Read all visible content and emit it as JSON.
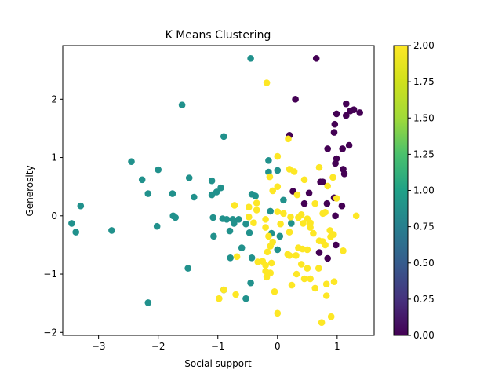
{
  "chart_data": {
    "type": "scatter",
    "title": "K Means Clustering",
    "xlabel": "Social support",
    "ylabel": "Generosity",
    "xlim": [
      -3.6,
      1.62
    ],
    "ylim": [
      -2.05,
      2.92
    ],
    "xticks": [
      -3,
      -2,
      -1,
      0,
      1
    ],
    "yticks": [
      -2,
      -1,
      0,
      1,
      2
    ],
    "grid": false,
    "colorbar": {
      "label": "",
      "range": [
        0,
        2
      ],
      "ticks": [
        "0.00",
        "0.25",
        "0.50",
        "0.75",
        "1.00",
        "1.25",
        "1.50",
        "1.75",
        "2.00"
      ],
      "colormap": "viridis"
    },
    "cluster_colors": {
      "0": "#440154",
      "1": "#21918c",
      "2": "#fde725"
    },
    "points": [
      {
        "x": 0.65,
        "y": 2.7,
        "c": 0
      },
      {
        "x": 0.3,
        "y": 2.0,
        "c": 0
      },
      {
        "x": 0.2,
        "y": 1.38,
        "c": 0
      },
      {
        "x": 1.15,
        "y": 1.92,
        "c": 0
      },
      {
        "x": 1.22,
        "y": 1.8,
        "c": 0
      },
      {
        "x": 1.28,
        "y": 1.82,
        "c": 0
      },
      {
        "x": 1.38,
        "y": 1.77,
        "c": 0
      },
      {
        "x": 1.15,
        "y": 1.72,
        "c": 0
      },
      {
        "x": 0.99,
        "y": 1.75,
        "c": 0
      },
      {
        "x": 0.96,
        "y": 1.57,
        "c": 0
      },
      {
        "x": 0.95,
        "y": 1.43,
        "c": 0
      },
      {
        "x": 1.2,
        "y": 1.21,
        "c": 0
      },
      {
        "x": 0.84,
        "y": 1.15,
        "c": 0
      },
      {
        "x": 1.09,
        "y": 1.15,
        "c": 0
      },
      {
        "x": 0.99,
        "y": 0.98,
        "c": 0
      },
      {
        "x": 0.97,
        "y": 0.9,
        "c": 0
      },
      {
        "x": 1.1,
        "y": 0.8,
        "c": 0
      },
      {
        "x": 1.12,
        "y": 0.72,
        "c": 0
      },
      {
        "x": 0.72,
        "y": 0.58,
        "c": 0
      },
      {
        "x": 0.76,
        "y": 0.58,
        "c": 0
      },
      {
        "x": 0.26,
        "y": 0.42,
        "c": 0
      },
      {
        "x": 0.53,
        "y": 0.39,
        "c": 0
      },
      {
        "x": 0.95,
        "y": 0.31,
        "c": 0
      },
      {
        "x": 0.45,
        "y": 0.21,
        "c": 0
      },
      {
        "x": 0.83,
        "y": 0.21,
        "c": 0
      },
      {
        "x": 1.08,
        "y": 0.17,
        "c": 0
      },
      {
        "x": 0.97,
        "y": 0.0,
        "c": 0
      },
      {
        "x": 0.98,
        "y": -0.5,
        "c": 0
      },
      {
        "x": 0.7,
        "y": -0.63,
        "c": 0
      },
      {
        "x": 0.84,
        "y": -0.73,
        "c": 0
      },
      {
        "x": -0.45,
        "y": 2.7,
        "c": 1
      },
      {
        "x": -1.6,
        "y": 1.9,
        "c": 1
      },
      {
        "x": -0.9,
        "y": 1.36,
        "c": 1
      },
      {
        "x": -2.45,
        "y": 0.93,
        "c": 1
      },
      {
        "x": -0.15,
        "y": 0.95,
        "c": 1
      },
      {
        "x": -2.0,
        "y": 0.79,
        "c": 1
      },
      {
        "x": -0.15,
        "y": 0.75,
        "c": 1
      },
      {
        "x": 0.0,
        "y": 0.78,
        "c": 1
      },
      {
        "x": -2.27,
        "y": 0.62,
        "c": 1
      },
      {
        "x": -1.48,
        "y": 0.65,
        "c": 1
      },
      {
        "x": -1.1,
        "y": 0.6,
        "c": 1
      },
      {
        "x": -0.95,
        "y": 0.48,
        "c": 1
      },
      {
        "x": -2.17,
        "y": 0.38,
        "c": 1
      },
      {
        "x": -1.76,
        "y": 0.38,
        "c": 1
      },
      {
        "x": -1.4,
        "y": 0.32,
        "c": 1
      },
      {
        "x": -1.1,
        "y": 0.36,
        "c": 1
      },
      {
        "x": -1.02,
        "y": 0.41,
        "c": 1
      },
      {
        "x": -0.43,
        "y": 0.37,
        "c": 1
      },
      {
        "x": -0.37,
        "y": 0.34,
        "c": 1
      },
      {
        "x": 0.1,
        "y": 0.27,
        "c": 1
      },
      {
        "x": -3.3,
        "y": 0.17,
        "c": 1
      },
      {
        "x": -0.12,
        "y": 0.08,
        "c": 1
      },
      {
        "x": -1.75,
        "y": 0.0,
        "c": 1
      },
      {
        "x": -1.71,
        "y": -0.03,
        "c": 1
      },
      {
        "x": -1.08,
        "y": -0.03,
        "c": 1
      },
      {
        "x": -0.92,
        "y": -0.05,
        "c": 1
      },
      {
        "x": -0.85,
        "y": -0.06,
        "c": 1
      },
      {
        "x": -0.75,
        "y": -0.06,
        "c": 1
      },
      {
        "x": -0.65,
        "y": -0.06,
        "c": 1
      },
      {
        "x": -3.45,
        "y": -0.13,
        "c": 1
      },
      {
        "x": -2.02,
        "y": -0.18,
        "c": 1
      },
      {
        "x": -0.73,
        "y": -0.13,
        "c": 1
      },
      {
        "x": -0.53,
        "y": -0.14,
        "c": 1
      },
      {
        "x": 0.23,
        "y": -0.13,
        "c": 1
      },
      {
        "x": -3.38,
        "y": -0.28,
        "c": 1
      },
      {
        "x": -2.78,
        "y": -0.25,
        "c": 1
      },
      {
        "x": -0.8,
        "y": -0.26,
        "c": 1
      },
      {
        "x": -0.47,
        "y": -0.29,
        "c": 1
      },
      {
        "x": -0.1,
        "y": -0.3,
        "c": 1
      },
      {
        "x": -1.07,
        "y": -0.35,
        "c": 1
      },
      {
        "x": 0.04,
        "y": -0.35,
        "c": 1
      },
      {
        "x": -0.6,
        "y": -0.55,
        "c": 1
      },
      {
        "x": 0.0,
        "y": -0.58,
        "c": 1
      },
      {
        "x": -0.79,
        "y": -0.72,
        "c": 1
      },
      {
        "x": -0.43,
        "y": -0.72,
        "c": 1
      },
      {
        "x": -1.5,
        "y": -0.9,
        "c": 1
      },
      {
        "x": -0.45,
        "y": -1.15,
        "c": 1
      },
      {
        "x": -0.9,
        "y": -1.27,
        "c": 1
      },
      {
        "x": -0.53,
        "y": -1.42,
        "c": 1
      },
      {
        "x": -2.17,
        "y": -1.49,
        "c": 1
      },
      {
        "x": -0.18,
        "y": 2.28,
        "c": 2
      },
      {
        "x": 0.18,
        "y": 1.32,
        "c": 2
      },
      {
        "x": 0.0,
        "y": 1.02,
        "c": 2
      },
      {
        "x": 0.2,
        "y": 0.8,
        "c": 2
      },
      {
        "x": 0.28,
        "y": 0.76,
        "c": 2
      },
      {
        "x": 0.7,
        "y": 0.83,
        "c": 2
      },
      {
        "x": -0.13,
        "y": 0.67,
        "c": 2
      },
      {
        "x": 0.45,
        "y": 0.62,
        "c": 2
      },
      {
        "x": 0.93,
        "y": 0.66,
        "c": 2
      },
      {
        "x": 0.0,
        "y": 0.5,
        "c": 2
      },
      {
        "x": 0.84,
        "y": 0.51,
        "c": 2
      },
      {
        "x": -0.08,
        "y": 0.43,
        "c": 2
      },
      {
        "x": 0.33,
        "y": 0.36,
        "c": 2
      },
      {
        "x": 0.99,
        "y": 0.3,
        "c": 2
      },
      {
        "x": -0.35,
        "y": 0.22,
        "c": 2
      },
      {
        "x": 0.63,
        "y": 0.21,
        "c": 2
      },
      {
        "x": -0.72,
        "y": 0.18,
        "c": 2
      },
      {
        "x": -0.48,
        "y": 0.15,
        "c": 2
      },
      {
        "x": -0.35,
        "y": 0.1,
        "c": 2
      },
      {
        "x": 0.0,
        "y": 0.07,
        "c": 2
      },
      {
        "x": 0.1,
        "y": 0.04,
        "c": 2
      },
      {
        "x": 0.4,
        "y": 0.02,
        "c": 2
      },
      {
        "x": 0.76,
        "y": 0.04,
        "c": 2
      },
      {
        "x": 0.8,
        "y": 0.06,
        "c": 2
      },
      {
        "x": 1.32,
        "y": 0.0,
        "c": 2
      },
      {
        "x": -0.48,
        "y": -0.02,
        "c": 2
      },
      {
        "x": 0.22,
        "y": -0.02,
        "c": 2
      },
      {
        "x": 0.35,
        "y": -0.03,
        "c": 2
      },
      {
        "x": -0.2,
        "y": -0.06,
        "c": 2
      },
      {
        "x": 0.5,
        "y": -0.05,
        "c": 2
      },
      {
        "x": -0.4,
        "y": -0.12,
        "c": 2
      },
      {
        "x": 0.05,
        "y": -0.14,
        "c": 2
      },
      {
        "x": 0.43,
        "y": -0.13,
        "c": 2
      },
      {
        "x": 0.55,
        "y": -0.12,
        "c": 2
      },
      {
        "x": -0.2,
        "y": -0.2,
        "c": 2
      },
      {
        "x": 0.55,
        "y": -0.2,
        "c": 2
      },
      {
        "x": 0.88,
        "y": -0.25,
        "c": 2
      },
      {
        "x": 0.2,
        "y": -0.28,
        "c": 2
      },
      {
        "x": 0.6,
        "y": -0.3,
        "c": 2
      },
      {
        "x": 0.94,
        "y": -0.32,
        "c": 2
      },
      {
        "x": -0.15,
        "y": -0.35,
        "c": 2
      },
      {
        "x": 0.89,
        "y": -0.36,
        "c": 2
      },
      {
        "x": 0.7,
        "y": -0.43,
        "c": 2
      },
      {
        "x": 0.76,
        "y": -0.44,
        "c": 2
      },
      {
        "x": -0.08,
        "y": -0.45,
        "c": 2
      },
      {
        "x": 0.8,
        "y": -0.5,
        "c": 2
      },
      {
        "x": -0.12,
        "y": -0.52,
        "c": 2
      },
      {
        "x": 0.35,
        "y": -0.55,
        "c": 2
      },
      {
        "x": 0.42,
        "y": -0.57,
        "c": 2
      },
      {
        "x": 0.5,
        "y": -0.58,
        "c": 2
      },
      {
        "x": 1.1,
        "y": -0.6,
        "c": 2
      },
      {
        "x": -0.17,
        "y": -0.62,
        "c": 2
      },
      {
        "x": 0.17,
        "y": -0.66,
        "c": 2
      },
      {
        "x": 0.2,
        "y": -0.68,
        "c": 2
      },
      {
        "x": 0.31,
        "y": -0.68,
        "c": 2
      },
      {
        "x": -0.68,
        "y": -0.7,
        "c": 2
      },
      {
        "x": -0.33,
        "y": -0.79,
        "c": 2
      },
      {
        "x": -0.25,
        "y": -0.78,
        "c": 2
      },
      {
        "x": -0.1,
        "y": -0.81,
        "c": 2
      },
      {
        "x": 0.4,
        "y": -0.83,
        "c": 2
      },
      {
        "x": -0.2,
        "y": -0.85,
        "c": 2
      },
      {
        "x": 0.5,
        "y": -0.9,
        "c": 2
      },
      {
        "x": 0.69,
        "y": -0.9,
        "c": 2
      },
      {
        "x": -0.2,
        "y": -0.95,
        "c": 2
      },
      {
        "x": -0.12,
        "y": -0.98,
        "c": 2
      },
      {
        "x": 0.32,
        "y": -1.0,
        "c": 2
      },
      {
        "x": -0.18,
        "y": -1.05,
        "c": 2
      },
      {
        "x": 0.45,
        "y": -1.08,
        "c": 2
      },
      {
        "x": 0.55,
        "y": -1.08,
        "c": 2
      },
      {
        "x": 0.95,
        "y": -1.13,
        "c": 2
      },
      {
        "x": 0.82,
        "y": -1.17,
        "c": 2
      },
      {
        "x": 0.24,
        "y": -1.19,
        "c": 2
      },
      {
        "x": 0.63,
        "y": -1.24,
        "c": 2
      },
      {
        "x": -0.9,
        "y": -1.27,
        "c": 2
      },
      {
        "x": -0.05,
        "y": -1.3,
        "c": 2
      },
      {
        "x": -0.7,
        "y": -1.35,
        "c": 2
      },
      {
        "x": 0.82,
        "y": -1.37,
        "c": 2
      },
      {
        "x": -0.98,
        "y": -1.42,
        "c": 2
      },
      {
        "x": 0.0,
        "y": -1.67,
        "c": 2
      },
      {
        "x": 0.9,
        "y": -1.73,
        "c": 2
      },
      {
        "x": 0.74,
        "y": -1.83,
        "c": 2
      }
    ]
  }
}
